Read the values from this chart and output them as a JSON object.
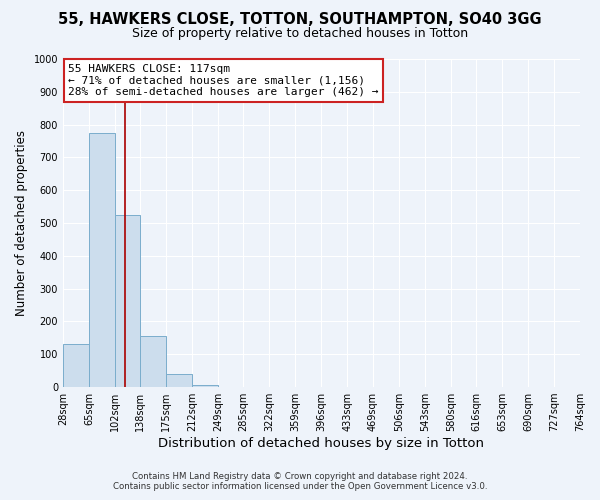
{
  "title": "55, HAWKERS CLOSE, TOTTON, SOUTHAMPTON, SO40 3GG",
  "subtitle": "Size of property relative to detached houses in Totton",
  "xlabel": "Distribution of detached houses by size in Totton",
  "ylabel": "Number of detached properties",
  "bar_edges": [
    28,
    65,
    102,
    138,
    175,
    212,
    249,
    285,
    322,
    359,
    396,
    433,
    469,
    506,
    543,
    580,
    616,
    653,
    690,
    727,
    764
  ],
  "bar_heights": [
    130,
    775,
    525,
    155,
    40,
    5,
    0,
    0,
    0,
    0,
    0,
    0,
    0,
    0,
    0,
    0,
    0,
    0,
    0,
    0
  ],
  "bar_color": "#ccdded",
  "bar_edge_color": "#7aadcc",
  "vline_x": 117,
  "vline_color": "#aa0000",
  "ylim": [
    0,
    1000
  ],
  "xlim": [
    28,
    764
  ],
  "annotation_line1": "55 HAWKERS CLOSE: 117sqm",
  "annotation_line2": "← 71% of detached houses are smaller (1,156)",
  "annotation_line3": "28% of semi-detached houses are larger (462) →",
  "annotation_box_facecolor": "white",
  "annotation_box_edgecolor": "#cc2222",
  "footnote1": "Contains HM Land Registry data © Crown copyright and database right 2024.",
  "footnote2": "Contains public sector information licensed under the Open Government Licence v3.0.",
  "bg_color": "#eef3fa",
  "title_fontsize": 10.5,
  "subtitle_fontsize": 9,
  "xlabel_fontsize": 9.5,
  "ylabel_fontsize": 8.5,
  "tick_fontsize": 7,
  "ytick_labels": [
    "0",
    "100",
    "200",
    "300",
    "400",
    "500",
    "600",
    "700",
    "800",
    "900",
    "1000"
  ],
  "ytick_values": [
    0,
    100,
    200,
    300,
    400,
    500,
    600,
    700,
    800,
    900,
    1000
  ],
  "tick_labels": [
    "28sqm",
    "65sqm",
    "102sqm",
    "138sqm",
    "175sqm",
    "212sqm",
    "249sqm",
    "285sqm",
    "322sqm",
    "359sqm",
    "396sqm",
    "433sqm",
    "469sqm",
    "506sqm",
    "543sqm",
    "580sqm",
    "616sqm",
    "653sqm",
    "690sqm",
    "727sqm",
    "764sqm"
  ]
}
